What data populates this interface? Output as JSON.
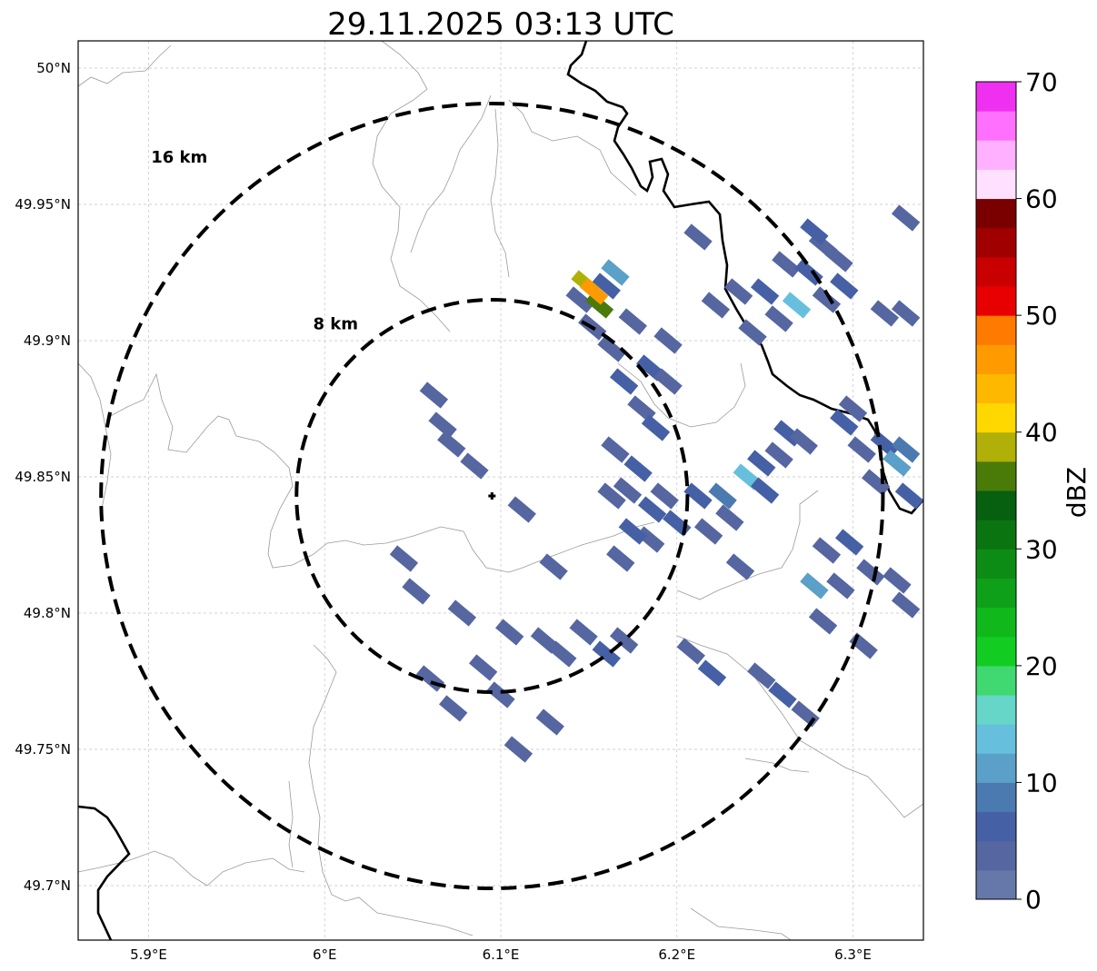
{
  "title": "29.11.2025 03:13 UTC",
  "map": {
    "lon_range": [
      5.86,
      6.34
    ],
    "lat_range": [
      49.68,
      50.01
    ],
    "lon_ticks": [
      {
        "value": 5.9,
        "label": "5.9°E"
      },
      {
        "value": 6.0,
        "label": "6°E"
      },
      {
        "value": 6.1,
        "label": "6.1°E"
      },
      {
        "value": 6.2,
        "label": "6.2°E"
      },
      {
        "value": 6.3,
        "label": "6.3°E"
      }
    ],
    "lat_ticks": [
      {
        "value": 49.7,
        "label": "49.7°N"
      },
      {
        "value": 49.75,
        "label": "49.75°N"
      },
      {
        "value": 49.8,
        "label": "49.8°N"
      },
      {
        "value": 49.85,
        "label": "49.85°N"
      },
      {
        "value": 49.9,
        "label": "49.9°N"
      },
      {
        "value": 49.95,
        "label": "49.95°N"
      },
      {
        "value": 50.0,
        "label": "50°N"
      }
    ],
    "radar_site": {
      "lon": 6.095,
      "lat": 49.843
    },
    "range_rings": [
      {
        "label": "8 km",
        "radius_lat": 0.072,
        "radius_lon": 0.111
      },
      {
        "label": "16 km",
        "radius_lat": 0.144,
        "radius_lon": 0.222
      }
    ]
  },
  "colorbar": {
    "unit": "dBZ",
    "min": 0,
    "max": 70,
    "ticks": [
      {
        "value": 0,
        "label": "0"
      },
      {
        "value": 10,
        "label": "10"
      },
      {
        "value": 20,
        "label": "20"
      },
      {
        "value": 30,
        "label": "30"
      },
      {
        "value": 40,
        "label": "40"
      },
      {
        "value": 50,
        "label": "50"
      },
      {
        "value": 60,
        "label": "60"
      },
      {
        "value": 70,
        "label": "70"
      }
    ],
    "colors": [
      "#6677aa",
      "#5566a0",
      "#4560a5",
      "#4a7ab0",
      "#5aa0c8",
      "#66c0dd",
      "#66d6c8",
      "#40d870",
      "#12cc22",
      "#10b81c",
      "#0ea018",
      "#0c8c14",
      "#0a7410",
      "#066010",
      "#4a7a08",
      "#b0b008",
      "#ffd800",
      "#ffb800",
      "#ff9a00",
      "#ff7a00",
      "#e80000",
      "#c80000",
      "#a00000",
      "#7a0000",
      "#ffe0ff",
      "#ffb0ff",
      "#ff70ff",
      "#f030f0"
    ]
  },
  "echoes": [
    {
      "lon": 6.145,
      "lat": 49.915,
      "lev": 1
    },
    {
      "lon": 6.152,
      "lat": 49.905,
      "lev": 1
    },
    {
      "lon": 6.16,
      "lat": 49.92,
      "lev": 2
    },
    {
      "lon": 6.163,
      "lat": 49.897,
      "lev": 1
    },
    {
      "lon": 6.17,
      "lat": 49.885,
      "lev": 2
    },
    {
      "lon": 6.18,
      "lat": 49.875,
      "lev": 1
    },
    {
      "lon": 6.185,
      "lat": 49.89,
      "lev": 2
    },
    {
      "lon": 6.175,
      "lat": 49.907,
      "lev": 1
    },
    {
      "lon": 6.195,
      "lat": 49.885,
      "lev": 1
    },
    {
      "lon": 6.188,
      "lat": 49.868,
      "lev": 2
    },
    {
      "lon": 6.195,
      "lat": 49.9,
      "lev": 1
    },
    {
      "lon": 6.148,
      "lat": 49.921,
      "lev": 15
    },
    {
      "lon": 6.156,
      "lat": 49.913,
      "lev": 14
    },
    {
      "lon": 6.153,
      "lat": 49.918,
      "lev": 18
    },
    {
      "lon": 6.165,
      "lat": 49.925,
      "lev": 4
    },
    {
      "lon": 6.062,
      "lat": 49.88,
      "lev": 1
    },
    {
      "lon": 6.067,
      "lat": 49.869,
      "lev": 1
    },
    {
      "lon": 6.072,
      "lat": 49.862,
      "lev": 1
    },
    {
      "lon": 6.085,
      "lat": 49.854,
      "lev": 1
    },
    {
      "lon": 6.112,
      "lat": 49.838,
      "lev": 1
    },
    {
      "lon": 6.165,
      "lat": 49.86,
      "lev": 1
    },
    {
      "lon": 6.178,
      "lat": 49.853,
      "lev": 2
    },
    {
      "lon": 6.172,
      "lat": 49.845,
      "lev": 1
    },
    {
      "lon": 6.163,
      "lat": 49.843,
      "lev": 1
    },
    {
      "lon": 6.186,
      "lat": 49.838,
      "lev": 2
    },
    {
      "lon": 6.193,
      "lat": 49.843,
      "lev": 1
    },
    {
      "lon": 6.185,
      "lat": 49.827,
      "lev": 1
    },
    {
      "lon": 6.175,
      "lat": 49.83,
      "lev": 2
    },
    {
      "lon": 6.168,
      "lat": 49.82,
      "lev": 1
    },
    {
      "lon": 6.2,
      "lat": 49.833,
      "lev": 2
    },
    {
      "lon": 6.212,
      "lat": 49.843,
      "lev": 2
    },
    {
      "lon": 6.226,
      "lat": 49.843,
      "lev": 3
    },
    {
      "lon": 6.24,
      "lat": 49.85,
      "lev": 5
    },
    {
      "lon": 6.248,
      "lat": 49.855,
      "lev": 2
    },
    {
      "lon": 6.258,
      "lat": 49.858,
      "lev": 1
    },
    {
      "lon": 6.263,
      "lat": 49.866,
      "lev": 2
    },
    {
      "lon": 6.272,
      "lat": 49.863,
      "lev": 1
    },
    {
      "lon": 6.23,
      "lat": 49.835,
      "lev": 1
    },
    {
      "lon": 6.218,
      "lat": 49.83,
      "lev": 1
    },
    {
      "lon": 6.25,
      "lat": 49.845,
      "lev": 2
    },
    {
      "lon": 6.295,
      "lat": 49.87,
      "lev": 2
    },
    {
      "lon": 6.305,
      "lat": 49.86,
      "lev": 1
    },
    {
      "lon": 6.318,
      "lat": 49.862,
      "lev": 2
    },
    {
      "lon": 6.325,
      "lat": 49.855,
      "lev": 4
    },
    {
      "lon": 6.33,
      "lat": 49.86,
      "lev": 3
    },
    {
      "lon": 6.313,
      "lat": 49.848,
      "lev": 1
    },
    {
      "lon": 6.3,
      "lat": 49.875,
      "lev": 1
    },
    {
      "lon": 6.332,
      "lat": 49.843,
      "lev": 2
    },
    {
      "lon": 6.235,
      "lat": 49.918,
      "lev": 1
    },
    {
      "lon": 6.25,
      "lat": 49.918,
      "lev": 2
    },
    {
      "lon": 6.262,
      "lat": 49.928,
      "lev": 1
    },
    {
      "lon": 6.268,
      "lat": 49.913,
      "lev": 5
    },
    {
      "lon": 6.275,
      "lat": 49.925,
      "lev": 2
    },
    {
      "lon": 6.283,
      "lat": 49.935,
      "lev": 1
    },
    {
      "lon": 6.285,
      "lat": 49.915,
      "lev": 1
    },
    {
      "lon": 6.295,
      "lat": 49.92,
      "lev": 2
    },
    {
      "lon": 6.258,
      "lat": 49.908,
      "lev": 1
    },
    {
      "lon": 6.243,
      "lat": 49.903,
      "lev": 1
    },
    {
      "lon": 6.222,
      "lat": 49.913,
      "lev": 1
    },
    {
      "lon": 6.212,
      "lat": 49.938,
      "lev": 1
    },
    {
      "lon": 6.278,
      "lat": 49.94,
      "lev": 2
    },
    {
      "lon": 6.292,
      "lat": 49.93,
      "lev": 1
    },
    {
      "lon": 6.318,
      "lat": 49.91,
      "lev": 1
    },
    {
      "lon": 6.33,
      "lat": 49.91,
      "lev": 1
    },
    {
      "lon": 6.33,
      "lat": 49.945,
      "lev": 1
    },
    {
      "lon": 6.285,
      "lat": 49.823,
      "lev": 1
    },
    {
      "lon": 6.278,
      "lat": 49.81,
      "lev": 4
    },
    {
      "lon": 6.293,
      "lat": 49.81,
      "lev": 1
    },
    {
      "lon": 6.298,
      "lat": 49.826,
      "lev": 2
    },
    {
      "lon": 6.283,
      "lat": 49.797,
      "lev": 1
    },
    {
      "lon": 6.31,
      "lat": 49.815,
      "lev": 1
    },
    {
      "lon": 6.325,
      "lat": 49.812,
      "lev": 1
    },
    {
      "lon": 6.33,
      "lat": 49.803,
      "lev": 1
    },
    {
      "lon": 6.236,
      "lat": 49.817,
      "lev": 1
    },
    {
      "lon": 6.13,
      "lat": 49.817,
      "lev": 1
    },
    {
      "lon": 6.078,
      "lat": 49.8,
      "lev": 1
    },
    {
      "lon": 6.09,
      "lat": 49.78,
      "lev": 1
    },
    {
      "lon": 6.105,
      "lat": 49.793,
      "lev": 1
    },
    {
      "lon": 6.1,
      "lat": 49.77,
      "lev": 1
    },
    {
      "lon": 6.073,
      "lat": 49.765,
      "lev": 1
    },
    {
      "lon": 6.06,
      "lat": 49.776,
      "lev": 1
    },
    {
      "lon": 6.052,
      "lat": 49.808,
      "lev": 1
    },
    {
      "lon": 6.045,
      "lat": 49.82,
      "lev": 1
    },
    {
      "lon": 6.147,
      "lat": 49.793,
      "lev": 1
    },
    {
      "lon": 6.16,
      "lat": 49.785,
      "lev": 2
    },
    {
      "lon": 6.17,
      "lat": 49.79,
      "lev": 1
    },
    {
      "lon": 6.125,
      "lat": 49.79,
      "lev": 1
    },
    {
      "lon": 6.128,
      "lat": 49.76,
      "lev": 1
    },
    {
      "lon": 6.11,
      "lat": 49.75,
      "lev": 1
    },
    {
      "lon": 6.135,
      "lat": 49.785,
      "lev": 1
    },
    {
      "lon": 6.208,
      "lat": 49.786,
      "lev": 1
    },
    {
      "lon": 6.22,
      "lat": 49.778,
      "lev": 2
    },
    {
      "lon": 6.248,
      "lat": 49.777,
      "lev": 1
    },
    {
      "lon": 6.26,
      "lat": 49.77,
      "lev": 2
    },
    {
      "lon": 6.273,
      "lat": 49.763,
      "lev": 1
    },
    {
      "lon": 6.306,
      "lat": 49.788,
      "lev": 1
    }
  ]
}
